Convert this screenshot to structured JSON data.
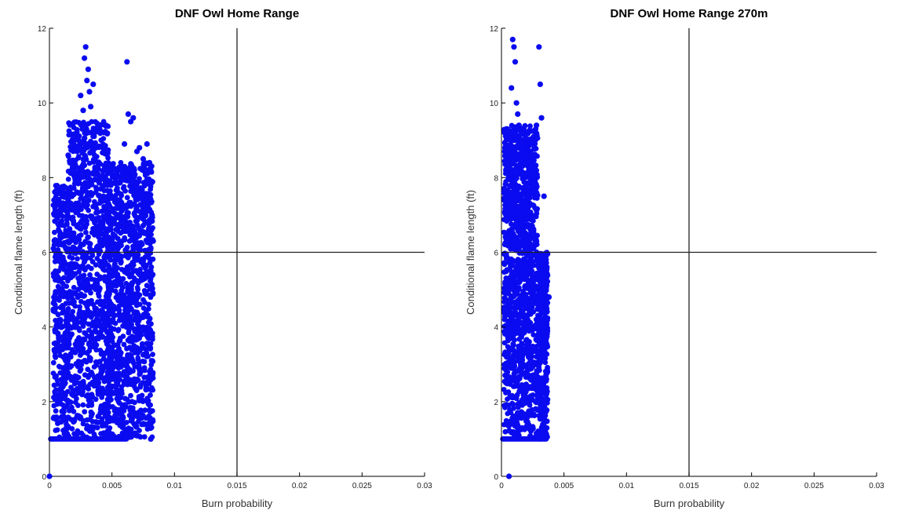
{
  "colors": {
    "marker": "#0b0bf0",
    "axis": "#000000",
    "refline": "#222222"
  },
  "chart_data": [
    {
      "type": "scatter",
      "title": "DNF Owl Home Range",
      "xlabel": "Burn probability",
      "ylabel": "Conditional flame length (ft)",
      "xlim": [
        0,
        0.03
      ],
      "ylim": [
        0,
        12
      ],
      "xticks": [
        "0",
        "0.005",
        "0.01",
        "0.015",
        "0.02",
        "0.025",
        "0.03"
      ],
      "yticks": [
        "0",
        "2",
        "4",
        "6",
        "8",
        "10",
        "12"
      ],
      "ref_lines": {
        "x": 0.015,
        "y": 6
      },
      "grid": false,
      "x": [
        0,
        0.0004,
        0.0008,
        0.0012,
        0.0015,
        0.0018,
        0.002,
        0.0022,
        0.0025,
        0.0027,
        0.0028,
        0.0029,
        0.003,
        0.0031,
        0.0032,
        0.0033,
        0.0035,
        0.0037,
        0.004,
        0.0043,
        0.0045,
        0.0048,
        0.005,
        0.0052,
        0.0055,
        0.0058,
        0.006,
        0.0062,
        0.0063,
        0.0065,
        0.0067,
        0.007,
        0.0072,
        0.0075,
        0.0078,
        0.008,
        0.0082,
        0.0083,
        0.0081
      ],
      "y": [
        0,
        6.3,
        5.8,
        7.2,
        8.6,
        7.5,
        9.0,
        8.7,
        10.2,
        9.8,
        11.2,
        11.5,
        10.6,
        10.9,
        10.3,
        9.9,
        10.5,
        8.8,
        9.3,
        7.5,
        7.8,
        6.2,
        7.1,
        6.9,
        7.6,
        6.8,
        8.9,
        11.1,
        9.7,
        9.5,
        9.6,
        8.7,
        8.8,
        8.5,
        8.9,
        8.4,
        7.0,
        6.3,
        1.0
      ]
    },
    {
      "type": "scatter",
      "title": "DNF Owl Home Range 270m",
      "xlabel": "Burn probability",
      "ylabel": "Conditional flame length (ft)",
      "xlim": [
        0,
        0.03
      ],
      "ylim": [
        0,
        12
      ],
      "xticks": [
        "0",
        "0.005",
        "0.01",
        "0.015",
        "0.02",
        "0.025",
        "0.03"
      ],
      "yticks": [
        "0",
        "2",
        "4",
        "6",
        "8",
        "10",
        "12"
      ],
      "ref_lines": {
        "x": 0.015,
        "y": 6
      },
      "grid": false,
      "x": [
        0.0006,
        0.0002,
        0.0004,
        0.0006,
        0.0008,
        0.0009,
        0.001,
        0.0011,
        0.0012,
        0.0013,
        0.0014,
        0.0015,
        0.0016,
        0.0018,
        0.002,
        0.0022,
        0.0024,
        0.0026,
        0.0028,
        0.003,
        0.0031,
        0.0032,
        0.0034,
        0.0036,
        0.0038
      ],
      "y": [
        0,
        7.6,
        8.5,
        9.2,
        10.4,
        11.7,
        11.5,
        11.1,
        10.0,
        9.7,
        9.4,
        9.0,
        8.8,
        8.7,
        9.2,
        8.6,
        9.0,
        8.3,
        9.4,
        11.5,
        10.5,
        9.6,
        7.5,
        5.6,
        4.8
      ]
    }
  ]
}
